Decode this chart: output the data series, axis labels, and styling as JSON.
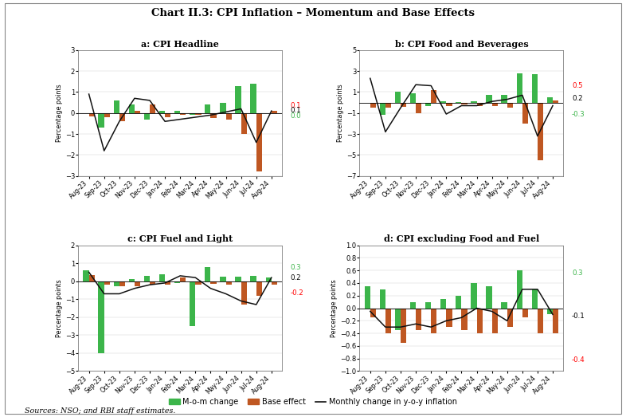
{
  "title": "Chart II.3: CPI Inflation – Momentum and Base Effects",
  "categories": [
    "Aug-23",
    "Sep-23",
    "Oct-23",
    "Nov-23",
    "Dec-23",
    "Jan-24",
    "Feb-24",
    "Mar-24",
    "Apr-24",
    "May-24",
    "Jun-24",
    "Jul-24",
    "Aug-24"
  ],
  "subplot_titles": [
    "a: CPI Headline",
    "b: CPI Food and Beverages",
    "c: CPI Fuel and Light",
    "d: CPI excluding Food and Fuel"
  ],
  "a_mom": [
    0.0,
    -0.7,
    0.6,
    0.4,
    -0.3,
    0.1,
    0.1,
    -0.1,
    0.4,
    0.5,
    1.3,
    1.4,
    0.0
  ],
  "a_base": [
    -0.15,
    -0.2,
    -0.4,
    0.1,
    0.4,
    -0.2,
    -0.1,
    -0.1,
    -0.25,
    -0.3,
    -1.0,
    -2.8,
    0.1
  ],
  "a_line": [
    0.9,
    -1.8,
    -0.4,
    0.7,
    0.6,
    -0.4,
    -0.3,
    -0.2,
    -0.1,
    0.05,
    0.2,
    -1.4,
    0.1
  ],
  "a_ylim": [
    -3.0,
    3.0
  ],
  "a_yticks": [
    -3.0,
    -2.0,
    -1.0,
    0.0,
    1.0,
    2.0,
    3.0
  ],
  "a_annot_red": [
    "0.1",
    0.35
  ],
  "a_annot_green": [
    "0.0",
    -0.15
  ],
  "a_annot_black": [
    "0.1",
    0.12
  ],
  "b_mom": [
    0.0,
    -1.2,
    1.0,
    0.9,
    -0.35,
    0.1,
    0.05,
    0.15,
    0.7,
    0.7,
    2.8,
    2.7,
    0.5
  ],
  "b_base": [
    -0.5,
    -0.5,
    -0.4,
    -1.0,
    1.2,
    -0.35,
    -0.2,
    -0.3,
    -0.35,
    -0.5,
    -2.0,
    -5.5,
    0.2
  ],
  "b_line": [
    2.3,
    -2.8,
    -0.5,
    1.7,
    1.6,
    -1.1,
    -0.3,
    -0.3,
    0.1,
    0.3,
    0.7,
    -3.2,
    -0.3
  ],
  "b_ylim": [
    -7.0,
    5.0
  ],
  "b_yticks": [
    -7.0,
    -5.0,
    -3.0,
    -1.0,
    1.0,
    3.0,
    5.0
  ],
  "b_annot_red": [
    "0.5",
    1.6
  ],
  "b_annot_green": [
    "-0.3",
    -1.1
  ],
  "b_annot_black": [
    "0.2",
    0.35
  ],
  "c_mom": [
    0.6,
    -4.0,
    -0.3,
    0.1,
    0.3,
    0.4,
    -0.1,
    -2.5,
    0.8,
    0.25,
    0.25,
    0.3,
    0.2
  ],
  "c_base": [
    0.35,
    -0.2,
    -0.3,
    -0.3,
    -0.2,
    -0.2,
    0.2,
    -0.2,
    -0.15,
    -0.2,
    -1.3,
    -0.8,
    -0.2
  ],
  "c_line": [
    0.5,
    -0.7,
    -0.7,
    -0.4,
    -0.2,
    -0.1,
    0.3,
    0.2,
    -0.4,
    -0.7,
    -1.1,
    -1.3,
    0.2
  ],
  "c_ylim": [
    -5.0,
    2.0
  ],
  "c_yticks": [
    -5.0,
    -4.0,
    -3.0,
    -2.0,
    -1.0,
    0.0,
    1.0,
    2.0
  ],
  "c_annot_red": [
    "-0.2",
    -0.65
  ],
  "c_annot_green": [
    "0.3",
    0.75
  ],
  "c_annot_black": [
    "0.2",
    0.2
  ],
  "d_mom": [
    0.35,
    0.3,
    -0.35,
    0.1,
    0.1,
    0.15,
    0.2,
    0.4,
    0.35,
    0.1,
    0.6,
    0.3,
    -0.1
  ],
  "d_base": [
    -0.15,
    -0.4,
    -0.55,
    -0.35,
    -0.4,
    -0.3,
    -0.35,
    -0.4,
    -0.4,
    -0.3,
    -0.15,
    -0.4,
    -0.4
  ],
  "d_line": [
    -0.05,
    -0.3,
    -0.3,
    -0.25,
    -0.3,
    -0.2,
    -0.15,
    0.0,
    -0.05,
    -0.2,
    0.3,
    0.3,
    -0.1
  ],
  "d_ylim": [
    -1.0,
    1.0
  ],
  "d_yticks": [
    -1.0,
    -0.8,
    -0.6,
    -0.4,
    -0.2,
    0.0,
    0.2,
    0.4,
    0.6,
    0.8,
    1.0
  ],
  "d_annot_red": [
    "-0.4",
    -0.82
  ],
  "d_annot_green": [
    "0.3",
    0.56
  ],
  "d_annot_black": [
    "-0.1",
    -0.13
  ],
  "color_green": "#3cb54a",
  "color_orange": "#bf5722",
  "color_line": "#111111",
  "ylabel": "Percentage points",
  "legend_green": "M-o-m change",
  "legend_orange": "Base effect",
  "legend_line": "Monthly change in y-o-y inflation",
  "source_text": "Sources: NSO; and RBI staff estimates."
}
